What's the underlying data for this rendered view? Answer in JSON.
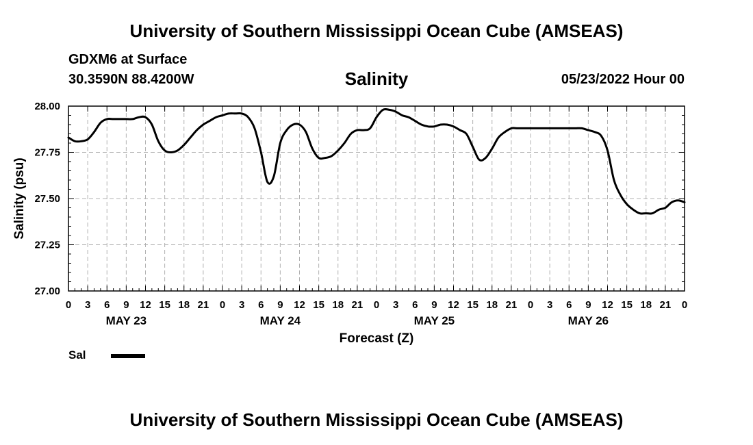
{
  "header": {
    "top_title": "University of Southern Mississippi Ocean Cube (AMSEAS)",
    "station": "GDXM6 at Surface",
    "coords": "30.3590N  88.4200W",
    "run_time": "05/23/2022 Hour 00",
    "bottom_title": "University of Southern Mississippi Ocean Cube (AMSEAS)"
  },
  "legend": {
    "label": "Sal"
  },
  "chart_data": {
    "type": "line",
    "title": "Salinity",
    "xlabel": "Forecast (Z)",
    "ylabel": "Salinity (psu)",
    "xlim": [
      0,
      96
    ],
    "ylim": [
      27.0,
      28.0
    ],
    "y_ticks": [
      "27.00",
      "27.25",
      "27.50",
      "27.75",
      "28.00"
    ],
    "x_tick_hours": [
      0,
      3,
      6,
      9,
      12,
      15,
      18,
      21,
      24,
      27,
      30,
      33,
      36,
      39,
      42,
      45,
      48,
      51,
      54,
      57,
      60,
      63,
      66,
      69,
      72,
      75,
      78,
      81,
      84,
      87,
      90,
      93,
      96
    ],
    "x_tick_labels": [
      "0",
      "3",
      "6",
      "9",
      "12",
      "15",
      "18",
      "21",
      "0",
      "3",
      "6",
      "9",
      "12",
      "15",
      "18",
      "21",
      "0",
      "3",
      "6",
      "9",
      "12",
      "15",
      "18",
      "21",
      "0",
      "3",
      "6",
      "9",
      "12",
      "15",
      "18",
      "21",
      "0"
    ],
    "date_labels": [
      {
        "label": "MAY 23",
        "hour": 9
      },
      {
        "label": "MAY 24",
        "hour": 33
      },
      {
        "label": "MAY 25",
        "hour": 57
      },
      {
        "label": "MAY 26",
        "hour": 81
      }
    ],
    "grid": true,
    "series": [
      {
        "name": "Sal",
        "x": [
          0,
          1,
          2,
          3,
          4,
          5,
          6,
          7,
          8,
          9,
          10,
          11,
          12,
          13,
          14,
          15,
          16,
          17,
          18,
          19,
          20,
          21,
          22,
          23,
          24,
          25,
          26,
          27,
          28,
          29,
          30,
          31,
          32,
          33,
          34,
          35,
          36,
          37,
          38,
          39,
          40,
          41,
          42,
          43,
          44,
          45,
          46,
          47,
          48,
          49,
          50,
          51,
          52,
          53,
          54,
          55,
          56,
          57,
          58,
          59,
          60,
          61,
          62,
          63,
          64,
          65,
          66,
          67,
          68,
          69,
          70,
          71,
          72,
          73,
          74,
          75,
          76,
          77,
          78,
          79,
          80,
          81,
          82,
          83,
          84,
          85,
          86,
          87,
          88,
          89,
          90,
          91,
          92,
          93,
          94,
          95,
          96
        ],
        "values": [
          27.83,
          27.81,
          27.81,
          27.82,
          27.86,
          27.91,
          27.93,
          27.93,
          27.93,
          27.93,
          27.93,
          27.94,
          27.94,
          27.9,
          27.81,
          27.76,
          27.75,
          27.76,
          27.79,
          27.83,
          27.87,
          27.9,
          27.92,
          27.94,
          27.95,
          27.96,
          27.96,
          27.96,
          27.94,
          27.88,
          27.75,
          27.59,
          27.62,
          27.8,
          27.87,
          27.9,
          27.9,
          27.86,
          27.77,
          27.72,
          27.72,
          27.73,
          27.76,
          27.8,
          27.85,
          27.87,
          27.87,
          27.88,
          27.94,
          27.98,
          27.98,
          27.97,
          27.95,
          27.94,
          27.92,
          27.9,
          27.89,
          27.89,
          27.9,
          27.9,
          27.89,
          27.87,
          27.85,
          27.78,
          27.71,
          27.72,
          27.77,
          27.83,
          27.86,
          27.88,
          27.88,
          27.88,
          27.88,
          27.88,
          27.88,
          27.88,
          27.88,
          27.88,
          27.88,
          27.88,
          27.88,
          27.87,
          27.86,
          27.84,
          27.76,
          27.6,
          27.52,
          27.47,
          27.44,
          27.42,
          27.42,
          27.42,
          27.44,
          27.45,
          27.48,
          27.49,
          27.48
        ]
      }
    ]
  }
}
